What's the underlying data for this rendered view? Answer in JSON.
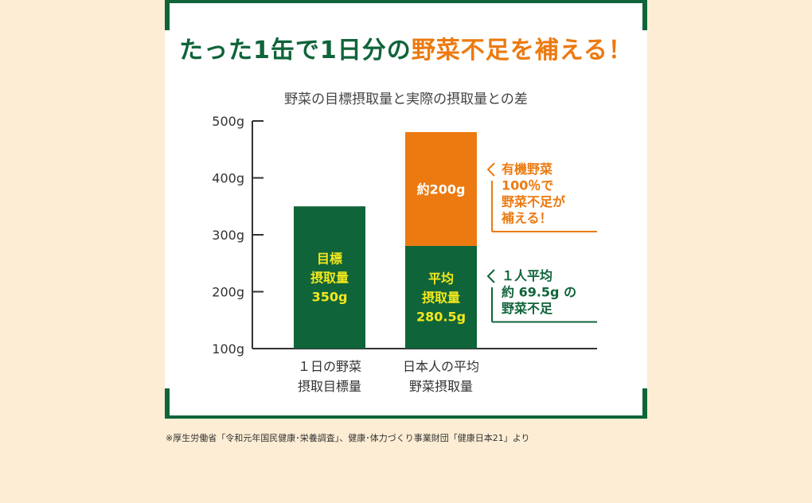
{
  "headline": {
    "part1": "たった1缶で1日分の",
    "part2": "野菜不足を補える！"
  },
  "footnote": "※厚生労働省「令和元年国民健康･栄養調査」、健康･体力づくり事業財団「健康日本21」より",
  "colors": {
    "green": "#10643a",
    "orange": "#ec7a10",
    "label_yellow": "#f3e81d",
    "background": "#fdedd4"
  },
  "chart_data": {
    "type": "bar",
    "title": "野菜の目標摂取量と実際の摂取量との差",
    "ylim": [
      100,
      500
    ],
    "yticks": [
      {
        "value": 100,
        "label": "100g"
      },
      {
        "value": 200,
        "label": "200g"
      },
      {
        "value": 300,
        "label": "300g"
      },
      {
        "value": 400,
        "label": "400g"
      },
      {
        "value": 500,
        "label": "500g"
      }
    ],
    "categories": [
      {
        "lines": [
          "１日の野菜",
          "摂取目標量"
        ]
      },
      {
        "lines": [
          "日本人の平均",
          "野菜摂取量"
        ]
      }
    ],
    "stacks": [
      {
        "category": 0,
        "base": 100,
        "value": 350,
        "color": "#10643a",
        "label_lines": [
          "目標",
          "摂取量",
          "350g"
        ]
      },
      {
        "category": 1,
        "base": 100,
        "value": 280.5,
        "color": "#10643a",
        "label_lines": [
          "平均",
          "摂取量",
          "280.5g"
        ]
      },
      {
        "category": 1,
        "base": 280.5,
        "value": 480.5,
        "color": "#ec7a10",
        "label_lines": [
          "約200g"
        ]
      }
    ],
    "annotations": [
      {
        "color": "#ec7a10",
        "from": 280.5,
        "to": 480.5,
        "lines": [
          "有機野菜",
          "100％で",
          "野菜不足が",
          "補える！"
        ]
      },
      {
        "color": "#10643a",
        "from": 100,
        "to": 280.5,
        "lines": [
          "１人平均",
          "約 69.5g の",
          "野菜不足"
        ]
      }
    ]
  }
}
